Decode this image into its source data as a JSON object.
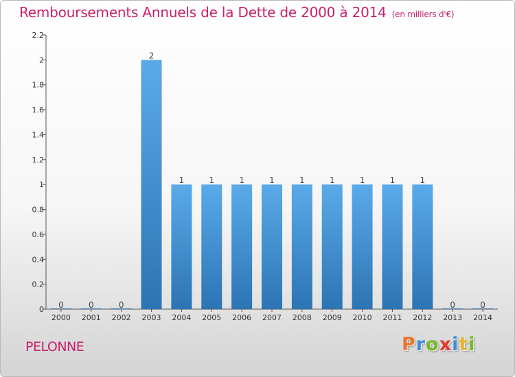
{
  "chart_data": {
    "type": "bar",
    "title": "Remboursements Annuels de la Dette de 2000 à 2014",
    "unit_label": "(en milliers d'€)",
    "categories": [
      "2000",
      "2001",
      "2002",
      "2003",
      "2004",
      "2005",
      "2006",
      "2007",
      "2008",
      "2009",
      "2010",
      "2011",
      "2012",
      "2013",
      "2014"
    ],
    "values": [
      0,
      0,
      0,
      2,
      1,
      1,
      1,
      1,
      1,
      1,
      1,
      1,
      1,
      0,
      0
    ],
    "value_labels": [
      "0",
      "0",
      "0",
      "2",
      "1",
      "1",
      "1",
      "1",
      "1",
      "1",
      "1",
      "1",
      "1",
      "0",
      "0"
    ],
    "ylim": [
      0,
      2.2
    ],
    "yticks": [
      "0",
      "0.2",
      "0.4",
      "0.6",
      "0.8",
      "1",
      "1.2",
      "1.4",
      "1.6",
      "1.8",
      "2",
      "2.2"
    ],
    "ytick_values": [
      0,
      0.2,
      0.4,
      0.6,
      0.8,
      1,
      1.2,
      1.4,
      1.6,
      1.8,
      2,
      2.2
    ],
    "grid": false,
    "bar_color_top": "#5aaae9",
    "bar_color_bottom": "#2c74b4",
    "title_color": "#cc1f6b"
  },
  "footer": {
    "commune": "PELONNE",
    "brand_letters": [
      "P",
      "r",
      "o",
      "x",
      "i",
      "t",
      "i"
    ],
    "brand_colors": [
      "#e8762c",
      "#3b8fd6",
      "#77b82a",
      "#e23a35",
      "#3b8fd6",
      "#e8b52c",
      "#77b82a"
    ]
  }
}
